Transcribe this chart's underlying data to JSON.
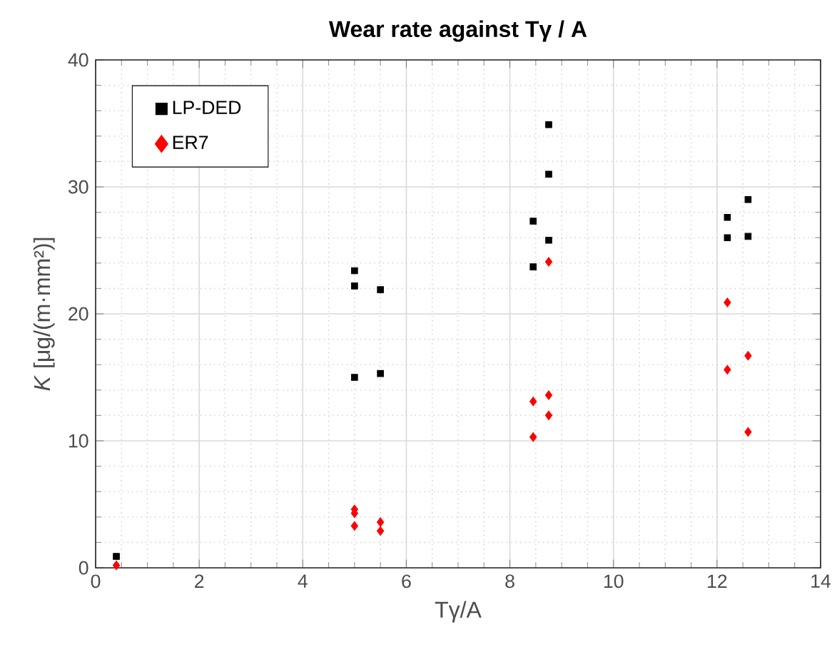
{
  "chart_data": {
    "type": "scatter",
    "title": "**Wear rate against Tγ / A**",
    "xlabel": "Tγ/A",
    "ylabel": "*K* [μg/(m·mm²)]",
    "xlim": [
      0,
      14
    ],
    "xticks": [
      0,
      2,
      4,
      6,
      8,
      10,
      12,
      14
    ],
    "ylim": [
      0,
      40
    ],
    "yticks": [
      0,
      10,
      20,
      30,
      40
    ],
    "grid": true,
    "legend": "top left",
    "series": [
      {
        "name": "LP-DED",
        "color": "#000000",
        "marker": "square",
        "x": [
          0.4,
          5,
          5,
          5,
          5.5,
          5.5,
          8.45,
          8.45,
          8.75,
          8.75,
          8.75,
          12.2,
          12.2,
          12.6,
          12.6
        ],
        "values": [
          0.9,
          23.4,
          22.2,
          15.0,
          21.9,
          15.3,
          27.3,
          23.7,
          34.9,
          31.0,
          25.8,
          27.6,
          26.0,
          29.0,
          26.1
        ]
      },
      {
        "name": "ER7",
        "color": "#ff0000",
        "marker": "diamond",
        "x": [
          0.4,
          5,
          5,
          5,
          5.5,
          5.5,
          8.45,
          8.45,
          8.75,
          8.75,
          8.75,
          12.2,
          12.2,
          12.6,
          12.6
        ],
        "values": [
          0.2,
          4.6,
          4.3,
          3.3,
          3.6,
          2.9,
          13.1,
          10.3,
          24.1,
          13.6,
          12.0,
          20.9,
          15.6,
          16.7,
          10.7
        ]
      }
    ]
  }
}
